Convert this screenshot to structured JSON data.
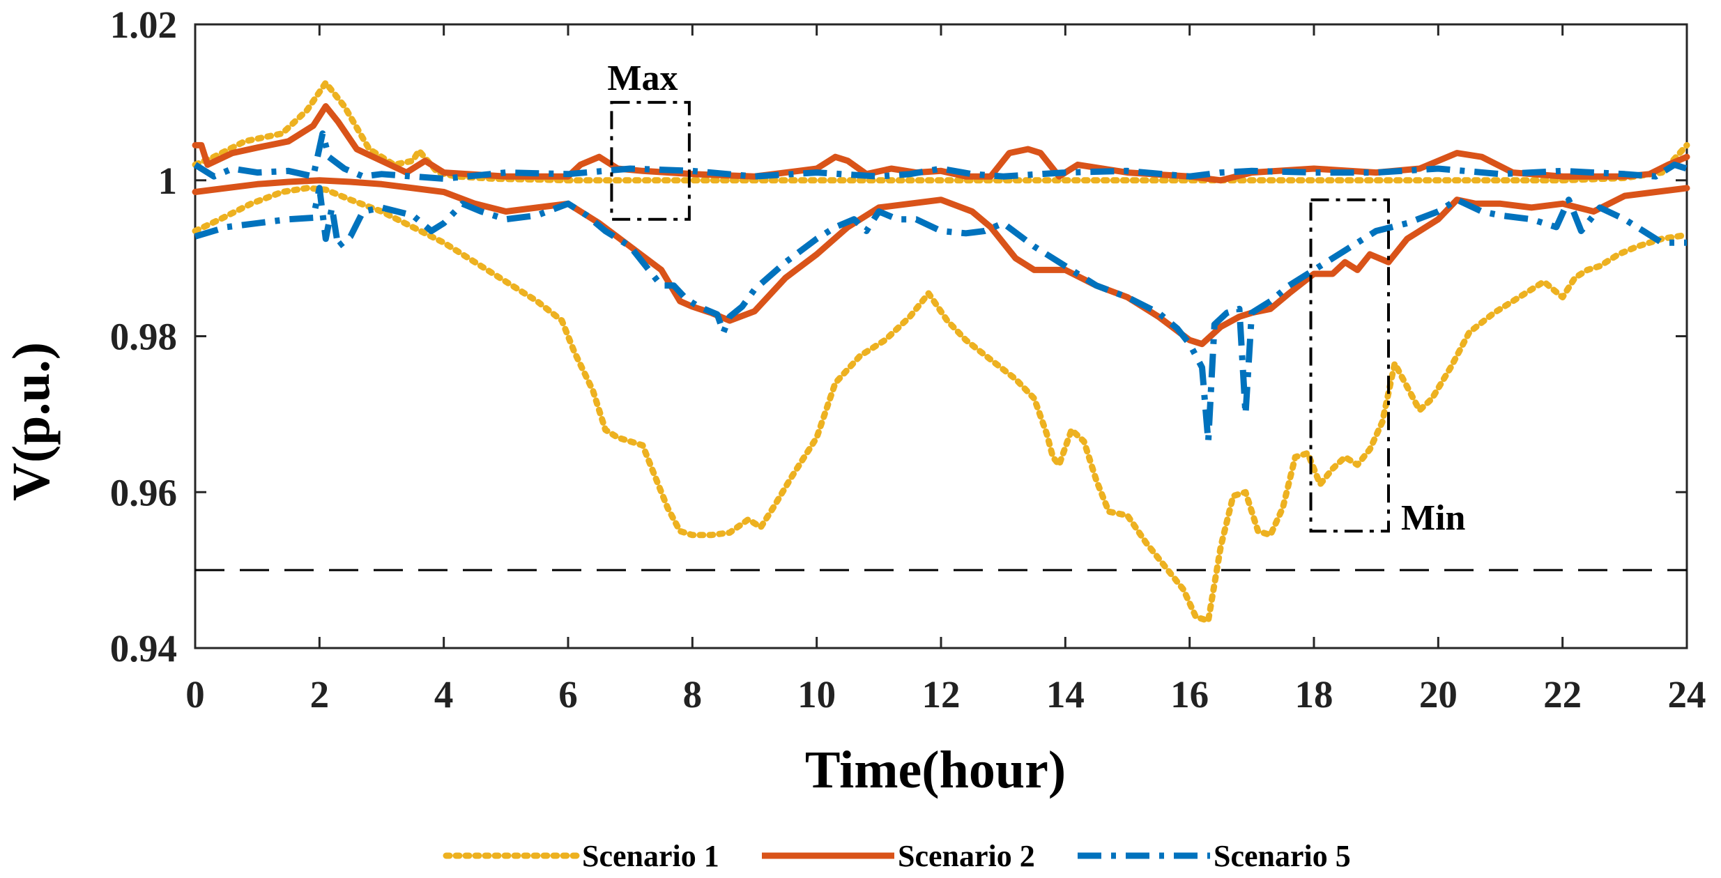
{
  "chart_data": {
    "type": "line",
    "title": "",
    "xlabel": "Time(hour)",
    "ylabel": "V(p.u.)",
    "xlim": [
      0,
      24
    ],
    "ylim": [
      0.94,
      1.02
    ],
    "xticks": [
      0,
      2,
      4,
      6,
      8,
      10,
      12,
      14,
      16,
      18,
      20,
      22,
      24
    ],
    "yticks": [
      0.94,
      0.96,
      0.98,
      1,
      1.02
    ],
    "ytick_labels": [
      "0.94",
      "0.96",
      "0.98",
      "1",
      "1.02"
    ],
    "grid": false,
    "legend_position": "bottom",
    "reference_line": {
      "y": 0.95,
      "style": "dashed",
      "color": "#000000"
    },
    "annotations": [
      {
        "label": "Max",
        "box": {
          "x0": 6.7,
          "x1": 7.95,
          "y0": 0.995,
          "y1": 1.01
        }
      },
      {
        "label": "Min",
        "box": {
          "x0": 17.95,
          "x1": 19.2,
          "y0": 0.955,
          "y1": 0.9975
        }
      }
    ],
    "series": [
      {
        "name": "Scenario 1",
        "color": "#EDB120",
        "dash": "dotted",
        "max": {
          "x": [
            0,
            0.3,
            0.8,
            1.4,
            1.8,
            2.1,
            2.4,
            2.8,
            3.2,
            3.5,
            3.6,
            3.9,
            4.2,
            4.8,
            5.5,
            6,
            7,
            8,
            9,
            10,
            11,
            12,
            13,
            14,
            15,
            16,
            17,
            18,
            19,
            20,
            21,
            22,
            23,
            23.6,
            24
          ],
          "values": [
            1.002,
            1.003,
            1.005,
            1.006,
            1.009,
            1.0125,
            1.0095,
            1.004,
            1.002,
            1.0025,
            1.0038,
            1.001,
            1.0005,
            1.0002,
            1.0001,
            1,
            1,
            1,
            1,
            1,
            1,
            1,
            1,
            1,
            1,
            1,
            1,
            1,
            1,
            1,
            1,
            1,
            1.0003,
            1.001,
            1.0045
          ]
        },
        "min": {
          "x": [
            0,
            0.4,
            0.9,
            1.4,
            1.8,
            2.1,
            2.5,
            3,
            3.5,
            4,
            4.5,
            5,
            5.5,
            5.9,
            6.1,
            6.4,
            6.6,
            6.8,
            7,
            7.2,
            7.4,
            7.6,
            7.8,
            8,
            8.3,
            8.6,
            8.9,
            9.1,
            9.3,
            9.6,
            10,
            10.3,
            10.7,
            11.1,
            11.5,
            11.8,
            12.1,
            12.4,
            12.8,
            13.2,
            13.5,
            13.7,
            13.8,
            13.9,
            14.1,
            14.3,
            14.5,
            14.7,
            15,
            15.3,
            15.6,
            15.9,
            16.1,
            16.3,
            16.5,
            16.7,
            16.9,
            17.1,
            17.3,
            17.5,
            17.7,
            17.9,
            18.1,
            18.3,
            18.5,
            18.7,
            18.9,
            19.1,
            19.3,
            19.5,
            19.7,
            19.9,
            20.2,
            20.5,
            20.9,
            21.3,
            21.7,
            22,
            22.2,
            22.4,
            22.6,
            22.9,
            23.2,
            23.6,
            24
          ],
          "values": [
            0.9935,
            0.995,
            0.997,
            0.9985,
            0.999,
            0.9988,
            0.9975,
            0.996,
            0.994,
            0.992,
            0.9895,
            0.987,
            0.9845,
            0.982,
            0.978,
            0.973,
            0.968,
            0.967,
            0.9665,
            0.966,
            0.962,
            0.958,
            0.955,
            0.9545,
            0.9545,
            0.9548,
            0.9565,
            0.9555,
            0.958,
            0.962,
            0.967,
            0.974,
            0.9775,
            0.9795,
            0.9825,
            0.9855,
            0.982,
            0.9795,
            0.977,
            0.9745,
            0.972,
            0.9675,
            0.9645,
            0.9635,
            0.968,
            0.9665,
            0.9615,
            0.9575,
            0.957,
            0.9535,
            0.9505,
            0.9475,
            0.944,
            0.9435,
            0.953,
            0.9595,
            0.96,
            0.955,
            0.9545,
            0.958,
            0.9645,
            0.965,
            0.961,
            0.963,
            0.9645,
            0.9635,
            0.9655,
            0.969,
            0.9765,
            0.9735,
            0.9705,
            0.972,
            0.976,
            0.9805,
            0.983,
            0.985,
            0.987,
            0.985,
            0.9875,
            0.9885,
            0.989,
            0.9905,
            0.9915,
            0.9925,
            0.993
          ]
        }
      },
      {
        "name": "Scenario 2",
        "color": "#D95319",
        "dash": "solid",
        "max": {
          "x": [
            0,
            0.1,
            0.2,
            0.6,
            1,
            1.5,
            1.9,
            2.1,
            2.3,
            2.6,
            3,
            3.4,
            3.7,
            4,
            5,
            6,
            6.2,
            6.5,
            6.8,
            7.2,
            8,
            9,
            10,
            10.3,
            10.5,
            10.8,
            11.2,
            11.6,
            12,
            12.4,
            12.8,
            13.1,
            13.4,
            13.6,
            13.9,
            14.2,
            15,
            16,
            16.5,
            17,
            18,
            19,
            19.7,
            20.3,
            20.7,
            21.2,
            22,
            23,
            23.4,
            23.7,
            24
          ],
          "values": [
            1.0045,
            1.0045,
            1.002,
            1.0035,
            1.0042,
            1.005,
            1.007,
            1.0095,
            1.0075,
            1.004,
            1.0025,
            1.001,
            1.0025,
            1.001,
            1.0005,
            1.0005,
            1.002,
            1.003,
            1.0015,
            1.0012,
            1.0008,
            1.0005,
            1.0015,
            1.003,
            1.0025,
            1.0008,
            1.0015,
            1.001,
            1.0012,
            1.0005,
            1.0005,
            1.0035,
            1.004,
            1.0035,
            1.0005,
            1.002,
            1.001,
            1.0005,
            1,
            1.001,
            1.0015,
            1.001,
            1.0015,
            1.0035,
            1.003,
            1.001,
            1.0005,
            1.0005,
            1.0008,
            1.002,
            1.003
          ]
        },
        "min": {
          "x": [
            0,
            0.5,
            1,
            1.5,
            2,
            2.5,
            3,
            3.5,
            4,
            4.5,
            5,
            5.5,
            6,
            6.5,
            7,
            7.5,
            7.8,
            8,
            8.3,
            8.6,
            9,
            9.5,
            10,
            10.5,
            11,
            11.5,
            12,
            12.5,
            12.8,
            13.2,
            13.5,
            14,
            14.5,
            15,
            15.5,
            16,
            16.2,
            16.5,
            16.8,
            17,
            17.3,
            17.6,
            18,
            18.3,
            18.5,
            18.7,
            18.9,
            19.2,
            19.5,
            20,
            20.3,
            20.6,
            21,
            21.5,
            22,
            22.5,
            23,
            23.5,
            24
          ],
          "values": [
            0.9985,
            0.999,
            0.9995,
            0.9998,
            1,
            0.9998,
            0.9995,
            0.999,
            0.9985,
            0.997,
            0.996,
            0.9965,
            0.997,
            0.9945,
            0.9915,
            0.9885,
            0.9845,
            0.9838,
            0.983,
            0.982,
            0.9832,
            0.9875,
            0.9905,
            0.994,
            0.9965,
            0.997,
            0.9975,
            0.996,
            0.994,
            0.99,
            0.9885,
            0.9885,
            0.9865,
            0.985,
            0.9825,
            0.9795,
            0.979,
            0.9812,
            0.9825,
            0.983,
            0.9835,
            0.9855,
            0.988,
            0.988,
            0.9895,
            0.9885,
            0.9905,
            0.9895,
            0.9925,
            0.995,
            0.9975,
            0.997,
            0.997,
            0.9965,
            0.997,
            0.996,
            0.998,
            0.9985,
            0.999
          ]
        }
      },
      {
        "name": "Scenario 5",
        "color": "#0072BD",
        "dash": "dashdot",
        "max": {
          "x": [
            0,
            0.3,
            0.6,
            1,
            1.5,
            1.9,
            2.05,
            2.15,
            2.4,
            2.7,
            3,
            3.5,
            4,
            5,
            6,
            7,
            8,
            9,
            10,
            11,
            11.5,
            12,
            12.5,
            13,
            14,
            15,
            16,
            16.5,
            17,
            18,
            19,
            20,
            21,
            22,
            23,
            23.5,
            23.8,
            24
          ],
          "values": [
            1.002,
            1.0005,
            1.0015,
            1.001,
            1.0012,
            1.0005,
            1.006,
            1.003,
            1.0015,
            1.0005,
            1.0008,
            1.0005,
            1.0002,
            1.001,
            1.0008,
            1.0015,
            1.0012,
            1.0005,
            1.001,
            1.0005,
            1.0008,
            1.0015,
            1.0008,
            1.0005,
            1.001,
            1.0012,
            1.0005,
            1.001,
            1.0012,
            1.001,
            1.001,
            1.0015,
            1.0008,
            1.0012,
            1.0008,
            1.0005,
            1.002,
            1.0015
          ]
        },
        "min": {
          "x": [
            0,
            0.5,
            1,
            1.5,
            1.9,
            2,
            2.1,
            2.2,
            2.3,
            2.5,
            2.7,
            3,
            3.5,
            3.8,
            4,
            4.3,
            4.6,
            5,
            5.5,
            6,
            6.3,
            6.6,
            7,
            7.3,
            7.5,
            7.7,
            7.9,
            8.1,
            8.4,
            8.5,
            8.6,
            8.8,
            9,
            9.5,
            10,
            10.3,
            10.6,
            10.8,
            11,
            11.3,
            11.6,
            12,
            12.4,
            12.7,
            13,
            13.5,
            14,
            14.5,
            15,
            15.5,
            15.8,
            16,
            16.2,
            16.3,
            16.4,
            16.6,
            16.8,
            16.9,
            17,
            17.1,
            17.3,
            17.6,
            18,
            18.5,
            19,
            19.5,
            20,
            20.3,
            20.7,
            21,
            21.5,
            21.9,
            22.1,
            22.3,
            22.6,
            23,
            23.3,
            23.6,
            24
          ],
          "values": [
            0.9928,
            0.994,
            0.9945,
            0.995,
            0.9952,
            0.999,
            0.9925,
            0.9965,
            0.9915,
            0.9928,
            0.996,
            0.9965,
            0.9955,
            0.9935,
            0.9945,
            0.997,
            0.996,
            0.995,
            0.9955,
            0.997,
            0.9955,
            0.9935,
            0.9915,
            0.9885,
            0.9865,
            0.9865,
            0.9848,
            0.9838,
            0.9828,
            0.9805,
            0.9825,
            0.9838,
            0.986,
            0.9895,
            0.9925,
            0.994,
            0.995,
            0.9935,
            0.996,
            0.995,
            0.995,
            0.9935,
            0.9932,
            0.9935,
            0.9945,
            0.9915,
            0.989,
            0.9865,
            0.985,
            0.983,
            0.981,
            0.979,
            0.976,
            0.9665,
            0.9815,
            0.983,
            0.9835,
            0.97,
            0.983,
            0.9835,
            0.9845,
            0.9865,
            0.9885,
            0.991,
            0.9935,
            0.9945,
            0.996,
            0.9975,
            0.996,
            0.9955,
            0.995,
            0.994,
            0.9975,
            0.9935,
            0.9965,
            0.995,
            0.9935,
            0.992,
            0.992
          ]
        }
      }
    ]
  }
}
